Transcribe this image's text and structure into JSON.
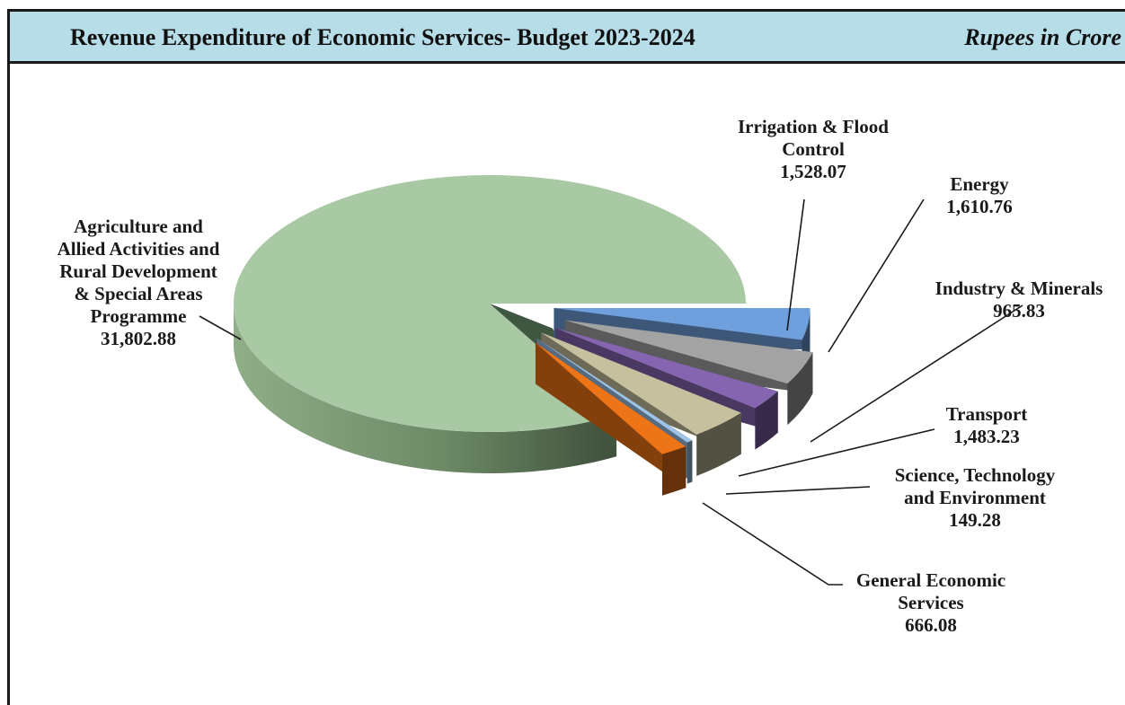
{
  "header": {
    "title": "Revenue Expenditure of Economic Services- Budget 2023-2024",
    "units": "Rupees in Crore"
  },
  "chart_data": {
    "type": "pie",
    "style": "3d-exploded",
    "title": "Revenue Expenditure of Economic Services- Budget 2023-2024",
    "unit": "Rupees in Crore",
    "slices": [
      {
        "label_lines": [
          "Irrigation & Flood",
          "Control"
        ],
        "value": 1528.07,
        "value_text": "1,528.07",
        "color": "#6f9fdc"
      },
      {
        "label_lines": [
          "Energy"
        ],
        "value": 1610.76,
        "value_text": "1,610.76",
        "color": "#a3a3a3"
      },
      {
        "label_lines": [
          "Industry & Minerals"
        ],
        "value": 965.83,
        "value_text": "965.83",
        "color": "#8565b0"
      },
      {
        "label_lines": [
          "Transport"
        ],
        "value": 1483.23,
        "value_text": "1,483.23",
        "color": "#c6c09e"
      },
      {
        "label_lines": [
          "Science, Technology",
          "and Environment"
        ],
        "value": 149.28,
        "value_text": "149.28",
        "color": "#9dc3e6"
      },
      {
        "label_lines": [
          "General Economic",
          "Services"
        ],
        "value": 666.08,
        "value_text": "666.08",
        "color": "#ee7418"
      },
      {
        "label_lines": [
          "Agriculture and",
          "Allied Activities and",
          "Rural Development",
          "& Special Areas",
          "Programme"
        ],
        "value": 31802.88,
        "value_text": "31,802.88",
        "color": "#a8c9a3"
      }
    ]
  }
}
